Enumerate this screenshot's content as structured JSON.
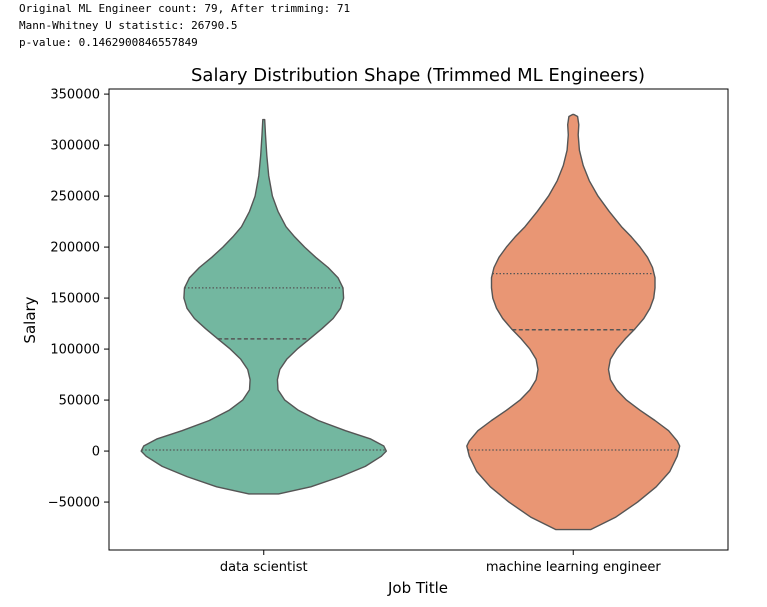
{
  "output": {
    "line1": "Original ML Engineer count: 79, After trimming: 71",
    "line2": "Mann-Whitney U statistic: 26790.5",
    "line3": "p-value: 0.1462900846557849"
  },
  "chart_data": {
    "type": "violin",
    "title": "Salary Distribution Shape (Trimmed ML Engineers)",
    "xlabel": "Job Title",
    "ylabel": "Salary",
    "ylim": [
      -97000,
      355000
    ],
    "yticks": [
      -50000,
      0,
      50000,
      100000,
      150000,
      200000,
      250000,
      300000,
      350000
    ],
    "ytick_labels": [
      "−50000",
      "0",
      "50000",
      "100000",
      "150000",
      "200000",
      "250000",
      "300000",
      "350000"
    ],
    "categories": [
      "data scientist",
      "machine learning engineer"
    ],
    "violins": [
      {
        "name": "data scientist",
        "color": "#73b7a0",
        "min": -42000,
        "max": 325000,
        "quartiles": {
          "q1": 1000,
          "median": 110000,
          "q3": 160000
        },
        "width_profile": [
          [
            -42000,
            0.12
          ],
          [
            -35000,
            0.38
          ],
          [
            -25000,
            0.62
          ],
          [
            -15000,
            0.82
          ],
          [
            -5000,
            0.95
          ],
          [
            0,
            0.99
          ],
          [
            5000,
            0.97
          ],
          [
            12000,
            0.86
          ],
          [
            20000,
            0.66
          ],
          [
            30000,
            0.44
          ],
          [
            40000,
            0.28
          ],
          [
            50000,
            0.17
          ],
          [
            60000,
            0.115
          ],
          [
            70000,
            0.11
          ],
          [
            80000,
            0.13
          ],
          [
            90000,
            0.185
          ],
          [
            100000,
            0.27
          ],
          [
            110000,
            0.37
          ],
          [
            120000,
            0.47
          ],
          [
            130000,
            0.56
          ],
          [
            140000,
            0.62
          ],
          [
            150000,
            0.645
          ],
          [
            160000,
            0.64
          ],
          [
            170000,
            0.6
          ],
          [
            180000,
            0.52
          ],
          [
            190000,
            0.42
          ],
          [
            200000,
            0.33
          ],
          [
            210000,
            0.25
          ],
          [
            220000,
            0.18
          ],
          [
            235000,
            0.115
          ],
          [
            250000,
            0.07
          ],
          [
            270000,
            0.04
          ],
          [
            290000,
            0.025
          ],
          [
            310000,
            0.014
          ],
          [
            325000,
            0.008
          ]
        ]
      },
      {
        "name": "machine learning engineer",
        "color": "#e99674",
        "min": -77000,
        "max": 330000,
        "quartiles": {
          "q1": 1000,
          "median": 119000,
          "q3": 174000
        },
        "width_profile": [
          [
            -77000,
            0.14
          ],
          [
            -65000,
            0.34
          ],
          [
            -50000,
            0.52
          ],
          [
            -35000,
            0.67
          ],
          [
            -20000,
            0.78
          ],
          [
            -5000,
            0.84
          ],
          [
            5000,
            0.86
          ],
          [
            10000,
            0.84
          ],
          [
            20000,
            0.77
          ],
          [
            30000,
            0.66
          ],
          [
            40000,
            0.54
          ],
          [
            50000,
            0.43
          ],
          [
            60000,
            0.35
          ],
          [
            70000,
            0.3
          ],
          [
            80000,
            0.285
          ],
          [
            90000,
            0.3
          ],
          [
            100000,
            0.35
          ],
          [
            110000,
            0.42
          ],
          [
            120000,
            0.5
          ],
          [
            130000,
            0.57
          ],
          [
            140000,
            0.62
          ],
          [
            150000,
            0.65
          ],
          [
            160000,
            0.66
          ],
          [
            170000,
            0.66
          ],
          [
            180000,
            0.64
          ],
          [
            190000,
            0.6
          ],
          [
            200000,
            0.54
          ],
          [
            210000,
            0.47
          ],
          [
            220000,
            0.39
          ],
          [
            235000,
            0.29
          ],
          [
            250000,
            0.2
          ],
          [
            265000,
            0.13
          ],
          [
            280000,
            0.08
          ],
          [
            295000,
            0.05
          ],
          [
            310000,
            0.04
          ],
          [
            320000,
            0.045
          ],
          [
            328000,
            0.035
          ],
          [
            330000,
            0.005
          ]
        ]
      }
    ]
  }
}
